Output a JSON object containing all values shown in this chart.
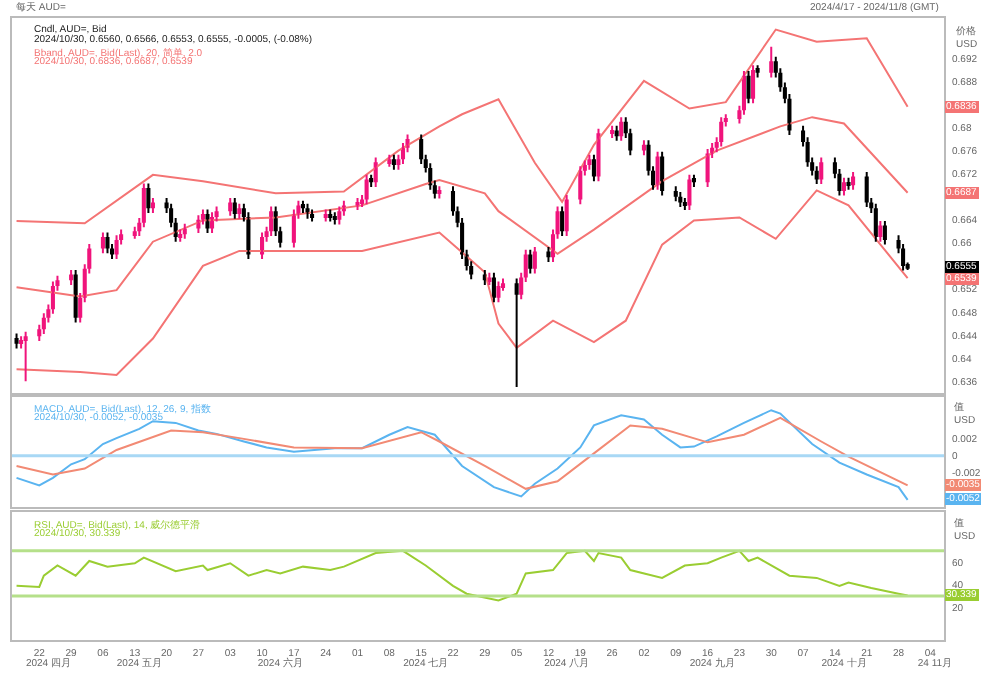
{
  "chart_data": [
    {
      "type": "candlestick",
      "title": "每天 AUD=",
      "subtitle": "2024/4/17 - 2024/11/8 (GMT)",
      "ylabel": "价格\nUSD",
      "colors": [
        "#000000",
        "#f0147c",
        "#f0147c",
        "#f0147c",
        "#f0147c",
        "#f0147c",
        "#f0147c",
        "#f0147c",
        "#f0147c",
        "#000000",
        "#f0147c",
        "#f0147c",
        "#f0147c",
        "#f0147c",
        "#000000",
        "#000000",
        "#f0147c",
        "#f0147c",
        "#f0147c",
        "#f0147c",
        "#f0147c",
        "#000000",
        "#f0147c",
        "#000000",
        "#000000",
        "#000000",
        "#f0147c",
        "#f0147c",
        "#f0147c",
        "#f0147c",
        "#000000",
        "#f0147c",
        "#f0147c",
        "#f0147c",
        "#000000",
        "#f0147c",
        "#000000",
        "#000000",
        "#f0147c",
        "#f0147c",
        "#f0147c",
        "#000000",
        "#000000",
        "#f0147c",
        "#f0147c",
        "#000000",
        "#000000",
        "#000000",
        "#f0147c",
        "#000000",
        "#000000",
        "#f0147c",
        "#f0147c",
        "#f0147c",
        "#f0147c",
        "#f0147c",
        "#000000",
        "#f0147c",
        "#f0147c",
        "#000000",
        "#f0147c",
        "#f0147c",
        "#f0147c",
        "#000000",
        "#000000",
        "#000000",
        "#000000",
        "#f0147c",
        "#000000",
        "#000000",
        "#000000",
        "#000000",
        "#000000",
        "#000000",
        "#f0147c",
        "#000000",
        "#f0147c",
        "#f0147c",
        "#000000",
        "#f0147c",
        "#f0147c",
        "#000000",
        "#f0147c",
        "#000000",
        "#f0147c",
        "#f0147c",
        "#000000",
        "#f0147c",
        "#f0147c",
        "#f0147c",
        "#f0147c",
        "#000000",
        "#f0147c",
        "#f0147c",
        "#000000",
        "#f0147c",
        "#000000",
        "#000000",
        "#f0147c",
        "#000000",
        "#000000",
        "#f0147c",
        "#000000",
        "#000000",
        "#000000",
        "#000000",
        "#f0147c",
        "#000000",
        "#f0147c",
        "#f0147c",
        "#f0147c",
        "#f0147c",
        "#f0147c",
        "#f0147c",
        "#f0147c",
        "#000000",
        "#f0147c",
        "#000000",
        "#f0147c",
        "#000000",
        "#000000",
        "#000000",
        "#000000",
        "#000000",
        "#000000",
        "#000000",
        "#000000",
        "#f0147c",
        "#000000",
        "#000000",
        "#f0147c",
        "#000000",
        "#f0147c",
        "#000000",
        "#000000",
        "#000000",
        "#f0147c",
        "#000000",
        "#000000",
        "#000000",
        "#000000"
      ],
      "x": [
        "2024-04-17",
        "2024-04-18",
        "2024-04-19",
        "2024-04-22",
        "2024-04-23",
        "2024-04-24",
        "2024-04-25",
        "2024-04-26",
        "2024-04-29",
        "2024-04-30",
        "2024-05-01",
        "2024-05-02",
        "2024-05-03",
        "2024-05-06",
        "2024-05-07",
        "2024-05-08",
        "2024-05-09",
        "2024-05-10",
        "2024-05-13",
        "2024-05-14",
        "2024-05-15",
        "2024-05-16",
        "2024-05-17",
        "2024-05-20",
        "2024-05-21",
        "2024-05-22",
        "2024-05-23",
        "2024-05-24",
        "2024-05-27",
        "2024-05-28",
        "2024-05-29",
        "2024-05-30",
        "2024-05-31",
        "2024-06-03",
        "2024-06-04",
        "2024-06-05",
        "2024-06-06",
        "2024-06-07",
        "2024-06-10",
        "2024-06-11",
        "2024-06-12",
        "2024-06-13",
        "2024-06-14",
        "2024-06-17",
        "2024-06-18",
        "2024-06-19",
        "2024-06-20",
        "2024-06-21",
        "2024-06-24",
        "2024-06-25",
        "2024-06-26",
        "2024-06-27",
        "2024-06-28",
        "2024-07-01",
        "2024-07-02",
        "2024-07-03",
        "2024-07-04",
        "2024-07-05",
        "2024-07-08",
        "2024-07-09",
        "2024-07-10",
        "2024-07-11",
        "2024-07-12",
        "2024-07-15",
        "2024-07-16",
        "2024-07-17",
        "2024-07-18",
        "2024-07-19",
        "2024-07-22",
        "2024-07-23",
        "2024-07-24",
        "2024-07-25",
        "2024-07-26",
        "2024-07-29",
        "2024-07-30",
        "2024-07-31",
        "2024-08-01",
        "2024-08-02",
        "2024-08-05",
        "2024-08-06",
        "2024-08-07",
        "2024-08-08",
        "2024-08-09",
        "2024-08-12",
        "2024-08-13",
        "2024-08-14",
        "2024-08-15",
        "2024-08-16",
        "2024-08-19",
        "2024-08-20",
        "2024-08-21",
        "2024-08-22",
        "2024-08-23",
        "2024-08-26",
        "2024-08-27",
        "2024-08-28",
        "2024-08-29",
        "2024-08-30",
        "2024-09-02",
        "2024-09-03",
        "2024-09-04",
        "2024-09-05",
        "2024-09-06",
        "2024-09-09",
        "2024-09-10",
        "2024-09-11",
        "2024-09-12",
        "2024-09-13",
        "2024-09-16",
        "2024-09-17",
        "2024-09-18",
        "2024-09-19",
        "2024-09-20",
        "2024-09-23",
        "2024-09-24",
        "2024-09-25",
        "2024-09-26",
        "2024-09-27",
        "2024-09-30",
        "2024-10-01",
        "2024-10-02",
        "2024-10-03",
        "2024-10-04",
        "2024-10-07",
        "2024-10-08",
        "2024-10-09",
        "2024-10-10",
        "2024-10-11",
        "2024-10-14",
        "2024-10-15",
        "2024-10-16",
        "2024-10-17",
        "2024-10-18",
        "2024-10-21",
        "2024-10-22",
        "2024-10-23",
        "2024-10-24",
        "2024-10-25",
        "2024-10-28",
        "2024-10-29",
        "2024-10-30"
      ],
      "ohlc": [
        [
          0.6435,
          0.6443,
          0.6417,
          0.6425
        ],
        [
          0.6425,
          0.6438,
          0.6417,
          0.643
        ],
        [
          0.643,
          0.6446,
          0.636,
          0.6438
        ],
        [
          0.6438,
          0.6458,
          0.643,
          0.645
        ],
        [
          0.645,
          0.6478,
          0.6442,
          0.647
        ],
        [
          0.647,
          0.6493,
          0.6462,
          0.6485
        ],
        [
          0.6485,
          0.6533,
          0.6477,
          0.6525
        ],
        [
          0.6525,
          0.6543,
          0.6517,
          0.6535
        ],
        [
          0.6535,
          0.6553,
          0.6527,
          0.6545
        ],
        [
          0.6545,
          0.6553,
          0.6462,
          0.647
        ],
        [
          0.647,
          0.6513,
          0.6462,
          0.6505
        ],
        [
          0.6505,
          0.6563,
          0.6497,
          0.6555
        ],
        [
          0.6555,
          0.6598,
          0.6547,
          0.659
        ],
        [
          0.659,
          0.6618,
          0.6582,
          0.661
        ],
        [
          0.661,
          0.6618,
          0.6582,
          0.659
        ],
        [
          0.659,
          0.6598,
          0.6572,
          0.658
        ],
        [
          0.658,
          0.6613,
          0.6572,
          0.6605
        ],
        [
          0.6605,
          0.6623,
          0.6597,
          0.6615
        ],
        [
          0.6615,
          0.6628,
          0.6607,
          0.662
        ],
        [
          0.662,
          0.6643,
          0.6612,
          0.6635
        ],
        [
          0.6635,
          0.6703,
          0.6627,
          0.6695
        ],
        [
          0.6695,
          0.6703,
          0.6652,
          0.666
        ],
        [
          0.666,
          0.6678,
          0.6652,
          0.667
        ],
        [
          0.667,
          0.6678,
          0.6652,
          0.666
        ],
        [
          0.666,
          0.6668,
          0.6627,
          0.6635
        ],
        [
          0.6635,
          0.6643,
          0.6602,
          0.661
        ],
        [
          0.661,
          0.6623,
          0.6602,
          0.6615
        ],
        [
          0.6615,
          0.6633,
          0.6607,
          0.6625
        ],
        [
          0.6625,
          0.6648,
          0.6617,
          0.664
        ],
        [
          0.664,
          0.6658,
          0.6632,
          0.665
        ],
        [
          0.665,
          0.6658,
          0.6617,
          0.6625
        ],
        [
          0.6625,
          0.6653,
          0.6617,
          0.6645
        ],
        [
          0.6645,
          0.6663,
          0.6637,
          0.6655
        ],
        [
          0.6655,
          0.6678,
          0.6647,
          0.667
        ],
        [
          0.667,
          0.6678,
          0.6642,
          0.665
        ],
        [
          0.665,
          0.6668,
          0.6642,
          0.666
        ],
        [
          0.666,
          0.6668,
          0.6637,
          0.6645
        ],
        [
          0.6645,
          0.6653,
          0.6572,
          0.658
        ],
        [
          0.658,
          0.6618,
          0.6572,
          0.661
        ],
        [
          0.661,
          0.6628,
          0.6602,
          0.662
        ],
        [
          0.662,
          0.6663,
          0.6612,
          0.6655
        ],
        [
          0.6655,
          0.6663,
          0.6612,
          0.662
        ],
        [
          0.662,
          0.6628,
          0.6592,
          0.66
        ],
        [
          0.66,
          0.6658,
          0.6592,
          0.665
        ],
        [
          0.665,
          0.6673,
          0.6642,
          0.6665
        ],
        [
          0.6665,
          0.6673,
          0.6652,
          0.666
        ],
        [
          0.666,
          0.6668,
          0.6642,
          0.665
        ],
        [
          0.665,
          0.6658,
          0.6637,
          0.6645
        ],
        [
          0.6645,
          0.6658,
          0.6637,
          0.665
        ],
        [
          0.665,
          0.6658,
          0.6637,
          0.6645
        ],
        [
          0.6645,
          0.6653,
          0.6632,
          0.664
        ],
        [
          0.664,
          0.6663,
          0.6632,
          0.6655
        ],
        [
          0.6655,
          0.6673,
          0.6647,
          0.6665
        ],
        [
          0.6665,
          0.6678,
          0.6657,
          0.667
        ],
        [
          0.667,
          0.6683,
          0.6662,
          0.6675
        ],
        [
          0.6675,
          0.6718,
          0.6667,
          0.671
        ],
        [
          0.671,
          0.6718,
          0.6697,
          0.6705
        ],
        [
          0.6705,
          0.6748,
          0.6697,
          0.674
        ],
        [
          0.674,
          0.6753,
          0.6732,
          0.6745
        ],
        [
          0.6745,
          0.6753,
          0.6727,
          0.6735
        ],
        [
          0.6735,
          0.6753,
          0.6727,
          0.6745
        ],
        [
          0.6745,
          0.6773,
          0.6737,
          0.6765
        ],
        [
          0.6765,
          0.6788,
          0.6757,
          0.678
        ],
        [
          0.678,
          0.6788,
          0.6737,
          0.6745
        ],
        [
          0.6745,
          0.6753,
          0.6722,
          0.673
        ],
        [
          0.673,
          0.6738,
          0.6692,
          0.67
        ],
        [
          0.67,
          0.6708,
          0.6677,
          0.6685
        ],
        [
          0.6685,
          0.6698,
          0.6677,
          0.669
        ],
        [
          0.669,
          0.6698,
          0.6647,
          0.6655
        ],
        [
          0.6655,
          0.6663,
          0.6627,
          0.6635
        ],
        [
          0.6635,
          0.6643,
          0.6572,
          0.658
        ],
        [
          0.658,
          0.6588,
          0.6552,
          0.656
        ],
        [
          0.656,
          0.6568,
          0.6537,
          0.6545
        ],
        [
          0.6545,
          0.6553,
          0.6527,
          0.6535
        ],
        [
          0.6535,
          0.6548,
          0.6527,
          0.654
        ],
        [
          0.654,
          0.6548,
          0.6497,
          0.6505
        ],
        [
          0.6505,
          0.6533,
          0.6497,
          0.6525
        ],
        [
          0.6525,
          0.6538,
          0.6517,
          0.653
        ],
        [
          0.653,
          0.6538,
          0.635,
          0.651
        ],
        [
          0.651,
          0.6548,
          0.6502,
          0.654
        ],
        [
          0.654,
          0.6588,
          0.6532,
          0.658
        ],
        [
          0.658,
          0.6588,
          0.6547,
          0.6555
        ],
        [
          0.6555,
          0.6593,
          0.6547,
          0.6585
        ],
        [
          0.6585,
          0.6593,
          0.6567,
          0.6575
        ],
        [
          0.6575,
          0.6623,
          0.6567,
          0.6615
        ],
        [
          0.6615,
          0.6663,
          0.6607,
          0.6655
        ],
        [
          0.6655,
          0.6663,
          0.6612,
          0.662
        ],
        [
          0.662,
          0.6683,
          0.6612,
          0.6675
        ],
        [
          0.6675,
          0.6733,
          0.6667,
          0.6725
        ],
        [
          0.6725,
          0.6743,
          0.6717,
          0.6735
        ],
        [
          0.6735,
          0.6753,
          0.6727,
          0.6745
        ],
        [
          0.6745,
          0.6753,
          0.6707,
          0.6715
        ],
        [
          0.6715,
          0.6798,
          0.6707,
          0.679
        ],
        [
          0.679,
          0.6803,
          0.6782,
          0.6795
        ],
        [
          0.6795,
          0.6803,
          0.6777,
          0.6785
        ],
        [
          0.6785,
          0.6818,
          0.6777,
          0.681
        ],
        [
          0.681,
          0.6818,
          0.6782,
          0.679
        ],
        [
          0.679,
          0.6798,
          0.6752,
          0.676
        ],
        [
          0.676,
          0.6778,
          0.6752,
          0.677
        ],
        [
          0.677,
          0.6778,
          0.6717,
          0.6725
        ],
        [
          0.6725,
          0.6733,
          0.6692,
          0.67
        ],
        [
          0.67,
          0.6758,
          0.6692,
          0.675
        ],
        [
          0.675,
          0.6758,
          0.6682,
          0.669
        ],
        [
          0.669,
          0.6698,
          0.6672,
          0.668
        ],
        [
          0.668,
          0.6688,
          0.6662,
          0.667
        ],
        [
          0.667,
          0.6678,
          0.6657,
          0.6665
        ],
        [
          0.6665,
          0.6718,
          0.6657,
          0.671
        ],
        [
          0.671,
          0.6718,
          0.6697,
          0.6705
        ],
        [
          0.6705,
          0.6763,
          0.6697,
          0.6755
        ],
        [
          0.6755,
          0.6773,
          0.6747,
          0.6765
        ],
        [
          0.6765,
          0.6783,
          0.6757,
          0.6775
        ],
        [
          0.6775,
          0.6818,
          0.6767,
          0.681
        ],
        [
          0.681,
          0.6823,
          0.6802,
          0.6815
        ],
        [
          0.6815,
          0.6838,
          0.6807,
          0.683
        ],
        [
          0.683,
          0.6898,
          0.6822,
          0.689
        ],
        [
          0.689,
          0.6898,
          0.6842,
          0.685
        ],
        [
          0.685,
          0.6908,
          0.6842,
          0.69
        ],
        [
          0.69,
          0.6908,
          0.6887,
          0.6895
        ],
        [
          0.6895,
          0.694,
          0.6887,
          0.6915
        ],
        [
          0.6915,
          0.6923,
          0.6887,
          0.6895
        ],
        [
          0.6895,
          0.6903,
          0.6862,
          0.687
        ],
        [
          0.687,
          0.6878,
          0.6842,
          0.685
        ],
        [
          0.685,
          0.6858,
          0.6787,
          0.6795
        ],
        [
          0.6795,
          0.6803,
          0.6767,
          0.6775
        ],
        [
          0.6775,
          0.6783,
          0.6732,
          0.674
        ],
        [
          0.674,
          0.6748,
          0.6717,
          0.6725
        ],
        [
          0.6725,
          0.6733,
          0.6702,
          0.671
        ],
        [
          0.671,
          0.6748,
          0.6702,
          0.674
        ],
        [
          0.674,
          0.6748,
          0.6712,
          0.672
        ],
        [
          0.672,
          0.6728,
          0.6682,
          0.669
        ],
        [
          0.669,
          0.6713,
          0.6682,
          0.6705
        ],
        [
          0.6705,
          0.6713,
          0.6692,
          0.67
        ],
        [
          0.67,
          0.6723,
          0.6692,
          0.6715
        ],
        [
          0.6715,
          0.6723,
          0.6662,
          0.667
        ],
        [
          0.667,
          0.6678,
          0.6652,
          0.666
        ],
        [
          0.666,
          0.6668,
          0.6602,
          0.661
        ],
        [
          0.661,
          0.6638,
          0.6602,
          0.663
        ],
        [
          0.663,
          0.6638,
          0.6597,
          0.6605
        ],
        [
          0.6605,
          0.6613,
          0.6582,
          0.659
        ],
        [
          0.659,
          0.6598,
          0.6552,
          0.656
        ],
        [
          0.656,
          0.6566,
          0.6553,
          0.6555
        ]
      ],
      "series": [
        {
          "type": "line",
          "color": "#f47474",
          "x": [
            "2024-04-17",
            "2024-05-02",
            "2024-05-17",
            "2024-05-28",
            "2024-06-13",
            "2024-06-28",
            "2024-07-10",
            "2024-07-19",
            "2024-07-24",
            "2024-08-01",
            "2024-08-09",
            "2024-08-15",
            "2024-08-22",
            "2024-09-02",
            "2024-09-12",
            "2024-09-20",
            "2024-10-01",
            "2024-10-10",
            "2024-10-21",
            "2024-10-30"
          ],
          "values": [
            0.6638,
            0.6634,
            0.6718,
            0.6707,
            0.6686,
            0.6689,
            0.676,
            0.6802,
            0.6823,
            0.6849,
            0.6739,
            0.6671,
            0.677,
            0.6881,
            0.6833,
            0.6844,
            0.697,
            0.6949,
            0.6955,
            0.6836
          ]
        },
        {
          "type": "line",
          "color": "#f47474",
          "x": [
            "2024-04-17",
            "2024-05-01",
            "2024-05-09",
            "2024-05-17",
            "2024-05-28",
            "2024-06-13",
            "2024-07-02",
            "2024-07-16",
            "2024-07-19",
            "2024-07-29",
            "2024-08-01",
            "2024-08-14",
            "2024-08-22",
            "2024-09-06",
            "2024-09-18",
            "2024-10-02",
            "2024-10-09",
            "2024-10-16",
            "2024-10-30"
          ],
          "values": [
            0.6523,
            0.6507,
            0.6518,
            0.6602,
            0.6639,
            0.6644,
            0.6665,
            0.6702,
            0.6709,
            0.6686,
            0.6655,
            0.6581,
            0.6623,
            0.6707,
            0.676,
            0.6802,
            0.6818,
            0.6807,
            0.6687
          ]
        },
        {
          "type": "line",
          "color": "#f47474",
          "x": [
            "2024-04-17",
            "2024-05-01",
            "2024-05-09",
            "2024-05-17",
            "2024-05-28",
            "2024-06-05",
            "2024-07-02",
            "2024-07-19",
            "2024-07-29",
            "2024-08-01",
            "2024-08-05",
            "2024-08-13",
            "2024-08-22",
            "2024-08-29",
            "2024-09-06",
            "2024-09-13",
            "2024-09-23",
            "2024-10-01",
            "2024-10-10",
            "2024-10-17",
            "2024-10-30"
          ],
          "values": [
            0.6381,
            0.6376,
            0.6371,
            0.6434,
            0.656,
            0.6586,
            0.6586,
            0.6618,
            0.6549,
            0.646,
            0.6418,
            0.6465,
            0.6428,
            0.6465,
            0.6597,
            0.6639,
            0.6644,
            0.6607,
            0.6691,
            0.6665,
            0.6539
          ]
        }
      ],
      "annotations": [
        "Cndl, AUD=, Bid",
        "2024/10/30, 0.6560, 0.6566, 0.6553, 0.6555, -0.0005, (-0.08%)",
        "Bband, AUD=, Bid(Last), 20, 简单, 2.0",
        "2024/10/30, 0.6836, 0.6687, 0.6539",
        {
          "text": "0.6836",
          "y": 0.6836
        },
        {
          "text": "0.6687",
          "y": 0.6687
        },
        {
          "text": "0.6539",
          "y": 0.6539
        },
        {
          "text": "0.6555",
          "y": 0.6555
        }
      ],
      "xlim": [
        "2024-04-16",
        "2024-11-07"
      ],
      "ylim": [
        0.634,
        0.699
      ],
      "yticks": [
        0.636,
        0.64,
        0.644,
        0.648,
        0.652,
        0.66,
        0.664,
        0.672,
        0.676,
        0.68,
        0.688,
        0.692
      ],
      "tick_labels": "y"
    },
    {
      "type": "line",
      "ylabel": "值\nUSD",
      "series": [
        {
          "color": "#5ab4f0",
          "x": [
            "2024-04-17",
            "2024-04-22",
            "2024-04-25",
            "2024-04-29",
            "2024-05-02",
            "2024-05-06",
            "2024-05-09",
            "2024-05-14",
            "2024-05-17",
            "2024-05-22",
            "2024-05-27",
            "2024-05-31",
            "2024-06-06",
            "2024-06-11",
            "2024-06-17",
            "2024-06-26",
            "2024-07-02",
            "2024-07-08",
            "2024-07-12",
            "2024-07-18",
            "2024-07-24",
            "2024-07-31",
            "2024-08-06",
            "2024-08-09",
            "2024-08-14",
            "2024-08-19",
            "2024-08-22",
            "2024-08-28",
            "2024-09-02",
            "2024-09-06",
            "2024-09-10",
            "2024-09-13",
            "2024-09-18",
            "2024-09-24",
            "2024-09-30",
            "2024-10-02",
            "2024-10-09",
            "2024-10-15",
            "2024-10-21",
            "2024-10-28",
            "2024-10-30"
          ],
          "values": [
            -0.0026,
            -0.0035,
            -0.0026,
            -0.001,
            -0.0004,
            0.0014,
            0.0021,
            0.0032,
            0.0041,
            0.0039,
            0.003,
            0.0026,
            0.0017,
            0.001,
            0.0005,
            0.0009,
            0.0009,
            0.0025,
            0.0034,
            0.0025,
            -0.0012,
            -0.0037,
            -0.0048,
            -0.0033,
            -0.0015,
            0.001,
            0.0036,
            0.0048,
            0.0043,
            0.0025,
            0.001,
            0.0011,
            0.0023,
            0.0039,
            0.0054,
            0.005,
            0.0014,
            -0.0008,
            -0.0022,
            -0.0037,
            -0.0052
          ]
        },
        {
          "color": "#f28a74",
          "x": [
            "2024-04-17",
            "2024-04-25",
            "2024-05-02",
            "2024-05-09",
            "2024-05-21",
            "2024-05-28",
            "2024-06-05",
            "2024-06-17",
            "2024-07-02",
            "2024-07-15",
            "2024-07-19",
            "2024-07-29",
            "2024-08-07",
            "2024-08-14",
            "2024-08-22",
            "2024-08-30",
            "2024-09-06",
            "2024-09-16",
            "2024-09-24",
            "2024-10-02",
            "2024-10-11",
            "2024-10-17",
            "2024-10-30"
          ],
          "values": [
            -0.0012,
            -0.0022,
            -0.0015,
            0.0007,
            0.003,
            0.0028,
            0.0021,
            0.001,
            0.0009,
            0.0028,
            0.0017,
            -0.0012,
            -0.0039,
            -0.003,
            0.0003,
            0.0036,
            0.0032,
            0.0016,
            0.0025,
            0.0045,
            0.0017,
            -0.0001,
            -0.0035
          ]
        }
      ],
      "annotations": [
        "MACD, AUD=, Bid(Last), 12, 26, 9, 指数",
        "2024/10/30, -0.0052, -0.0035",
        {
          "text": "-0.0052",
          "y": -0.0052
        },
        {
          "text": "-0.0035",
          "y": -0.0035
        }
      ],
      "ref_lines": [
        {
          "axis": "y",
          "value": 0,
          "color": "#a8d8f5"
        }
      ],
      "xlim": [
        "2024-04-16",
        "2024-11-07"
      ],
      "ylim": [
        -0.006,
        0.007
      ],
      "yticks": [
        0.002,
        0,
        -0.002
      ],
      "tick_labels": "y"
    },
    {
      "type": "line",
      "ylabel": "值\nUSD",
      "series": [
        {
          "color": "#9acd32",
          "x": [
            "2024-04-17",
            "2024-04-22",
            "2024-04-23",
            "2024-04-26",
            "2024-04-30",
            "2024-05-03",
            "2024-05-07",
            "2024-05-13",
            "2024-05-15",
            "2024-05-22",
            "2024-05-28",
            "2024-05-29",
            "2024-06-03",
            "2024-06-07",
            "2024-06-11",
            "2024-06-14",
            "2024-06-19",
            "2024-06-25",
            "2024-06-28",
            "2024-07-05",
            "2024-07-11",
            "2024-07-16",
            "2024-07-22",
            "2024-07-25",
            "2024-08-01",
            "2024-08-05",
            "2024-08-07",
            "2024-08-13",
            "2024-08-16",
            "2024-08-20",
            "2024-08-22",
            "2024-08-23",
            "2024-08-28",
            "2024-08-30",
            "2024-09-06",
            "2024-09-11",
            "2024-09-16",
            "2024-09-19",
            "2024-09-23",
            "2024-09-25",
            "2024-09-27",
            "2024-10-04",
            "2024-10-10",
            "2024-10-15",
            "2024-10-17",
            "2024-10-22",
            "2024-10-28",
            "2024-10-30"
          ],
          "values": [
            39,
            38,
            48,
            57,
            48,
            61,
            56,
            59,
            64,
            52,
            57,
            53,
            59,
            48,
            53,
            50,
            56,
            53,
            56,
            68,
            70,
            57,
            39,
            32,
            26,
            32,
            50,
            53,
            68,
            70,
            61,
            68,
            64,
            53,
            46,
            57,
            59,
            64,
            70,
            61,
            64,
            48,
            46,
            39,
            42,
            37,
            32,
            30.339
          ]
        }
      ],
      "annotations": [
        "RSI, AUD=, Bid(Last), 14, 威尔德平滑",
        "2024/10/30, 30.339",
        {
          "text": "30.339",
          "y": 30.339
        }
      ],
      "ref_lines": [
        {
          "axis": "y",
          "value": 70,
          "color": "#b5e08a"
        },
        {
          "axis": "y",
          "value": 30,
          "color": "#b5e08a"
        }
      ],
      "xlim": [
        "2024-04-16",
        "2024-11-07"
      ],
      "ylim": [
        -9,
        104
      ],
      "yticks": [
        20,
        40,
        60
      ],
      "xticks": [
        {
          "value": "2024-04-22",
          "label": "22"
        },
        {
          "value": "2024-04-29",
          "label": "29"
        },
        {
          "value": "2024-05-06",
          "label": "06"
        },
        {
          "value": "2024-05-13",
          "label": "13"
        },
        {
          "value": "2024-05-20",
          "label": "20"
        },
        {
          "value": "2024-05-27",
          "label": "27"
        },
        {
          "value": "2024-06-03",
          "label": "03"
        },
        {
          "value": "2024-06-10",
          "label": "10"
        },
        {
          "value": "2024-06-17",
          "label": "17"
        },
        {
          "value": "2024-06-24",
          "label": "24"
        },
        {
          "value": "2024-07-01",
          "label": "01"
        },
        {
          "value": "2024-07-08",
          "label": "08"
        },
        {
          "value": "2024-07-15",
          "label": "15"
        },
        {
          "value": "2024-07-22",
          "label": "22"
        },
        {
          "value": "2024-07-29",
          "label": "29"
        },
        {
          "value": "2024-08-05",
          "label": "05"
        },
        {
          "value": "2024-08-12",
          "label": "12"
        },
        {
          "value": "2024-08-19",
          "label": "19"
        },
        {
          "value": "2024-08-26",
          "label": "26"
        },
        {
          "value": "2024-09-02",
          "label": "02"
        },
        {
          "value": "2024-09-09",
          "label": "09"
        },
        {
          "value": "2024-09-16",
          "label": "16"
        },
        {
          "value": "2024-09-23",
          "label": "23"
        },
        {
          "value": "2024-09-30",
          "label": "30"
        },
        {
          "value": "2024-10-07",
          "label": "07"
        },
        {
          "value": "2024-10-14",
          "label": "14"
        },
        {
          "value": "2024-10-21",
          "label": "21"
        },
        {
          "value": "2024-10-28",
          "label": "28"
        },
        {
          "value": "2024-11-04",
          "label": "04"
        }
      ],
      "x2lim": [
        "2024-04-16",
        "2024-11-07"
      ],
      "x2ticks": [
        {
          "value": "2024-04-24",
          "label": "2024 四月"
        },
        {
          "value": "2024-05-14",
          "label": "2024 五月"
        },
        {
          "value": "2024-06-14",
          "label": "2024 六月"
        },
        {
          "value": "2024-07-16",
          "label": "2024 七月"
        },
        {
          "value": "2024-08-16",
          "label": "2024 八月"
        },
        {
          "value": "2024-09-17",
          "label": "2024 九月"
        },
        {
          "value": "2024-10-16",
          "label": "2024 十月"
        },
        {
          "value": "2024-11-05",
          "label": "24 11月"
        }
      ]
    }
  ]
}
